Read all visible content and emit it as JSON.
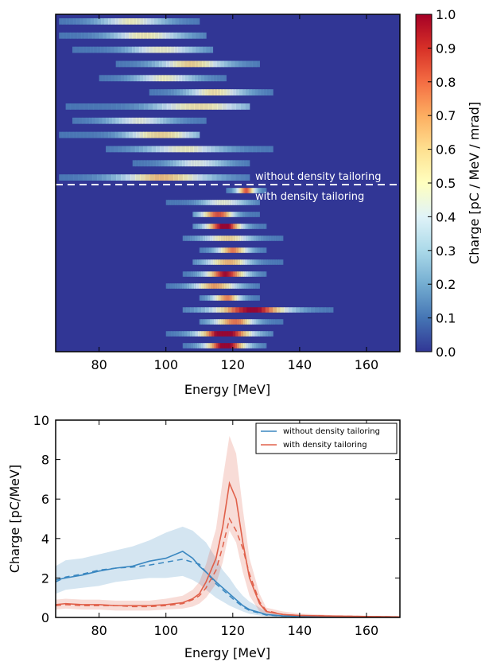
{
  "chart_data": [
    {
      "type": "heatmap",
      "xlabel": "Energy [MeV]",
      "xlim": [
        67,
        170
      ],
      "xticks": [
        80,
        100,
        120,
        140,
        160
      ],
      "colorbar": {
        "label": "Charge [pC / MeV / mrad]",
        "range": [
          0.0,
          1.0
        ],
        "ticks": [
          "0.0",
          "0.1",
          "0.2",
          "0.3",
          "0.4",
          "0.5",
          "0.6",
          "0.7",
          "0.8",
          "0.9",
          "1.0"
        ],
        "colormap": [
          "#313695",
          "#4575b4",
          "#74add1",
          "#abd9e9",
          "#e0f3f8",
          "#ffffbf",
          "#fee090",
          "#fdae61",
          "#f46d43",
          "#d73027",
          "#a50026"
        ]
      },
      "annotations": {
        "above_line": "without density tailoring",
        "below_line": "with density tailoring"
      },
      "shots_without": [
        {
          "emin": 68,
          "emax": 110,
          "peak": 90,
          "amp": 0.35
        },
        {
          "emin": 68,
          "emax": 112,
          "peak": 95,
          "amp": 0.4
        },
        {
          "emin": 72,
          "emax": 114,
          "peak": 100,
          "amp": 0.38
        },
        {
          "emin": 85,
          "emax": 128,
          "peak": 108,
          "amp": 0.45
        },
        {
          "emin": 80,
          "emax": 118,
          "peak": 100,
          "amp": 0.35
        },
        {
          "emin": 95,
          "emax": 132,
          "peak": 115,
          "amp": 0.4
        },
        {
          "emin": 70,
          "emax": 125,
          "peak": 112,
          "amp": 0.5
        },
        {
          "emin": 72,
          "emax": 112,
          "peak": 92,
          "amp": 0.3
        },
        {
          "emin": 68,
          "emax": 110,
          "peak": 100,
          "amp": 0.55
        },
        {
          "emin": 82,
          "emax": 132,
          "peak": 105,
          "amp": 0.35
        },
        {
          "emin": 90,
          "emax": 125,
          "peak": 110,
          "amp": 0.3
        },
        {
          "emin": 68,
          "emax": 125,
          "peak": 100,
          "amp": 0.5
        }
      ],
      "shots_with": [
        {
          "emin": 118,
          "emax": 130,
          "peak": 124,
          "amp": 0.65
        },
        {
          "emin": 100,
          "emax": 128,
          "peak": 118,
          "amp": 0.35
        },
        {
          "emin": 108,
          "emax": 128,
          "peak": 115,
          "amp": 0.75
        },
        {
          "emin": 108,
          "emax": 130,
          "peak": 117,
          "amp": 0.9
        },
        {
          "emin": 105,
          "emax": 135,
          "peak": 118,
          "amp": 0.45
        },
        {
          "emin": 110,
          "emax": 130,
          "peak": 120,
          "amp": 0.6
        },
        {
          "emin": 108,
          "emax": 135,
          "peak": 118,
          "amp": 0.55
        },
        {
          "emin": 105,
          "emax": 130,
          "peak": 118,
          "amp": 0.8
        },
        {
          "emin": 100,
          "emax": 128,
          "peak": 115,
          "amp": 0.55
        },
        {
          "emin": 110,
          "emax": 128,
          "peak": 118,
          "amp": 0.6
        },
        {
          "emin": 105,
          "emax": 150,
          "peak": 125,
          "amp": 0.85
        },
        {
          "emin": 110,
          "emax": 135,
          "peak": 120,
          "amp": 0.65
        },
        {
          "emin": 100,
          "emax": 132,
          "peak": 118,
          "amp": 0.95
        },
        {
          "emin": 105,
          "emax": 130,
          "peak": 118,
          "amp": 0.9
        }
      ]
    },
    {
      "type": "line",
      "xlabel": "Energy [MeV]",
      "ylabel": "Charge [pC/MeV]",
      "xlim": [
        67,
        170
      ],
      "ylim": [
        0,
        10
      ],
      "xticks": [
        80,
        100,
        120,
        140,
        160
      ],
      "yticks": [
        0,
        2,
        4,
        6,
        8,
        10
      ],
      "grid": false,
      "legend_position": "top-right",
      "x": [
        67,
        70,
        75,
        80,
        85,
        90,
        95,
        100,
        105,
        108,
        110,
        112,
        115,
        117,
        119,
        121,
        123,
        125,
        128,
        130,
        135,
        140,
        150,
        160,
        170
      ],
      "series": [
        {
          "name": "without density tailoring",
          "color": "#3a87c0",
          "values": [
            1.9,
            2.0,
            2.15,
            2.35,
            2.5,
            2.6,
            2.85,
            3.0,
            3.35,
            3.0,
            2.6,
            2.3,
            1.8,
            1.5,
            1.2,
            0.9,
            0.6,
            0.4,
            0.25,
            0.15,
            0.08,
            0.06,
            0.05,
            0.04,
            0.03
          ],
          "mean": [
            1.8,
            2.05,
            2.2,
            2.4,
            2.5,
            2.55,
            2.65,
            2.8,
            2.95,
            2.8,
            2.7,
            2.3,
            1.7,
            1.4,
            1.1,
            0.8,
            0.55,
            0.35,
            0.22,
            0.12,
            0.07,
            0.05,
            0.04,
            0.03,
            0.03
          ],
          "band_low": [
            1.2,
            1.4,
            1.5,
            1.6,
            1.8,
            1.9,
            2.0,
            2.0,
            2.1,
            1.9,
            1.7,
            1.4,
            1.0,
            0.8,
            0.6,
            0.45,
            0.3,
            0.18,
            0.1,
            0.05,
            0.03,
            0.02,
            0.02,
            0.01,
            0.01
          ],
          "band_high": [
            2.6,
            2.9,
            3.0,
            3.2,
            3.4,
            3.6,
            3.9,
            4.3,
            4.6,
            4.4,
            4.1,
            3.8,
            3.0,
            2.4,
            2.0,
            1.5,
            1.1,
            0.8,
            0.5,
            0.3,
            0.15,
            0.1,
            0.08,
            0.07,
            0.06
          ]
        },
        {
          "name": "with density tailoring",
          "color": "#e0604a",
          "values": [
            0.65,
            0.7,
            0.65,
            0.65,
            0.6,
            0.6,
            0.6,
            0.65,
            0.75,
            0.95,
            1.2,
            1.8,
            3.0,
            4.6,
            6.8,
            6.0,
            3.8,
            2.0,
            0.7,
            0.3,
            0.15,
            0.1,
            0.07,
            0.05,
            0.03
          ],
          "mean": [
            0.6,
            0.65,
            0.6,
            0.6,
            0.6,
            0.55,
            0.55,
            0.6,
            0.7,
            0.9,
            1.1,
            1.5,
            2.4,
            3.6,
            5.0,
            4.4,
            3.5,
            2.2,
            0.8,
            0.35,
            0.15,
            0.1,
            0.07,
            0.05,
            0.03
          ],
          "band_low": [
            0.4,
            0.45,
            0.4,
            0.4,
            0.35,
            0.35,
            0.35,
            0.4,
            0.45,
            0.55,
            0.7,
            1.0,
            1.7,
            2.8,
            4.4,
            3.8,
            2.3,
            1.1,
            0.3,
            0.1,
            0.05,
            0.04,
            0.03,
            0.02,
            0.01
          ],
          "band_high": [
            0.9,
            0.95,
            0.9,
            0.9,
            0.85,
            0.85,
            0.85,
            0.95,
            1.1,
            1.4,
            1.8,
            2.7,
            4.5,
            7.0,
            9.2,
            8.3,
            5.5,
            3.0,
            1.2,
            0.5,
            0.3,
            0.2,
            0.12,
            0.08,
            0.06
          ]
        }
      ]
    }
  ]
}
